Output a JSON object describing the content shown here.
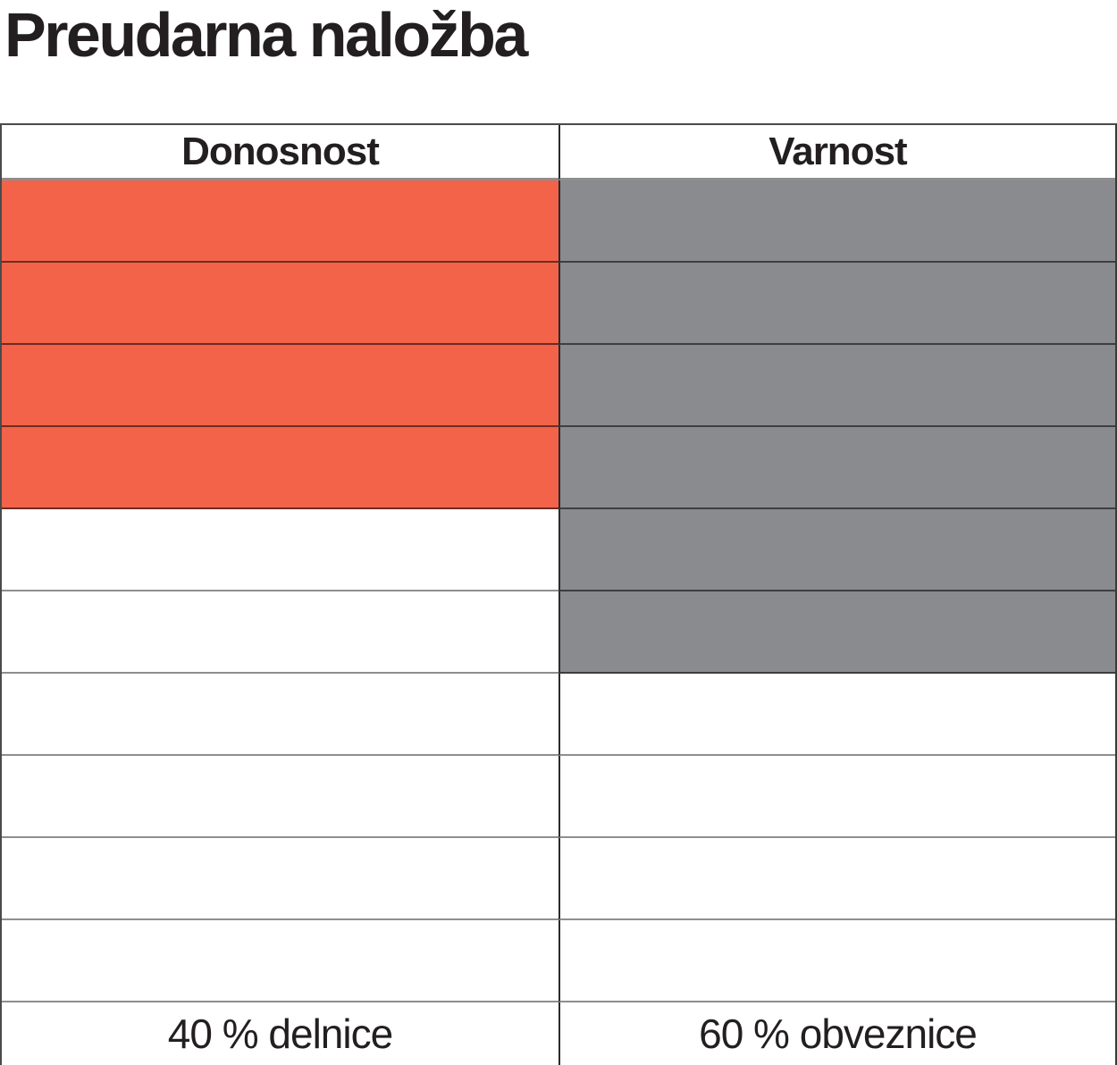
{
  "page": {
    "title": "Preudarna naložba"
  },
  "colors": {
    "returns_fill": "#F2634A",
    "safety_fill": "#8A8B8E",
    "grid_line_light": "#8E8E8E",
    "grid_line_dark": "#3A3A3A",
    "text": "#231F20"
  },
  "table": {
    "rows_total": 10,
    "columns": [
      {
        "header": "Donosnost",
        "filled_cells": 4,
        "fill_color": "#F2634A",
        "footer": "40 % delnice"
      },
      {
        "header": "Varnost",
        "filled_cells": 6,
        "fill_color": "#8A8B8E",
        "footer": "60 % obveznice"
      }
    ]
  },
  "chart_data": {
    "type": "table",
    "title": "Preudarna naložba",
    "categories": [
      "Donosnost",
      "Varnost"
    ],
    "series": [
      {
        "name": "filled_cells_out_of_10",
        "values": [
          4,
          6
        ]
      },
      {
        "name": "allocation_percent",
        "values": [
          40,
          60
        ]
      }
    ],
    "footer_labels": [
      "40 % delnice",
      "60 % obveznice"
    ],
    "layout": "2 columns × 10 stacked cells each, filled from the top down",
    "fill_colors": [
      "#F2634A",
      "#8A8B8E"
    ],
    "legend_position": "none",
    "grid": true
  }
}
